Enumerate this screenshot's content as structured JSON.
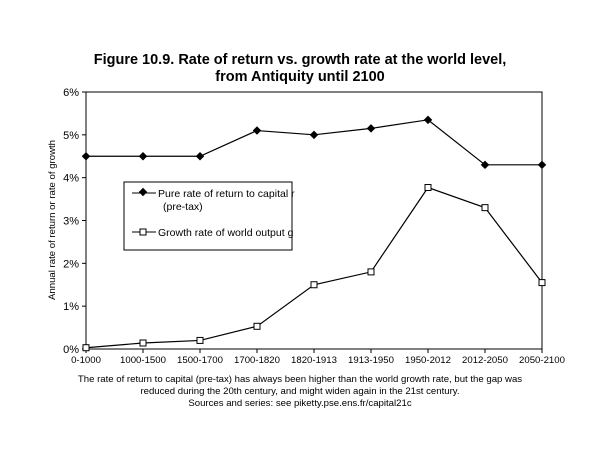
{
  "chart_data": {
    "type": "line",
    "title_line1": "Figure 10.9. Rate of return vs. growth rate at the world level,",
    "title_line2": "from Antiquity until 2100",
    "ylabel": "Annual rate of return or rate of growth",
    "xlabel": "",
    "categories": [
      "0-1000",
      "1000-1500",
      "1500-1700",
      "1700-1820",
      "1820-1913",
      "1913-1950",
      "1950-2012",
      "2012-2050",
      "2050-2100"
    ],
    "ylim": [
      0,
      6
    ],
    "yticks": [
      "0%",
      "1%",
      "2%",
      "3%",
      "4%",
      "5%",
      "6%"
    ],
    "grid": false,
    "legend_position": "left-middle",
    "series": [
      {
        "name_line1": "Pure rate of return to capital r",
        "name_line2": "(pre-tax)",
        "marker": "filled-diamond",
        "color": "#000000",
        "values": [
          4.5,
          4.5,
          4.5,
          5.1,
          5.0,
          5.15,
          5.35,
          4.3,
          4.3
        ]
      },
      {
        "name_line1": "Growth rate of world output g",
        "name_line2": "",
        "marker": "open-square",
        "color": "#000000",
        "values": [
          0.03,
          0.14,
          0.2,
          0.53,
          1.5,
          1.8,
          3.77,
          3.3,
          1.55
        ]
      }
    ]
  },
  "caption": {
    "line1": "The rate of return to capital (pre-tax) has always been higher than the world growth rate, but the gap was",
    "line2": "reduced during the 20th century, and might widen again in the 21st century.",
    "line3": "Sources and series: see piketty.pse.ens.fr/capital21c"
  }
}
